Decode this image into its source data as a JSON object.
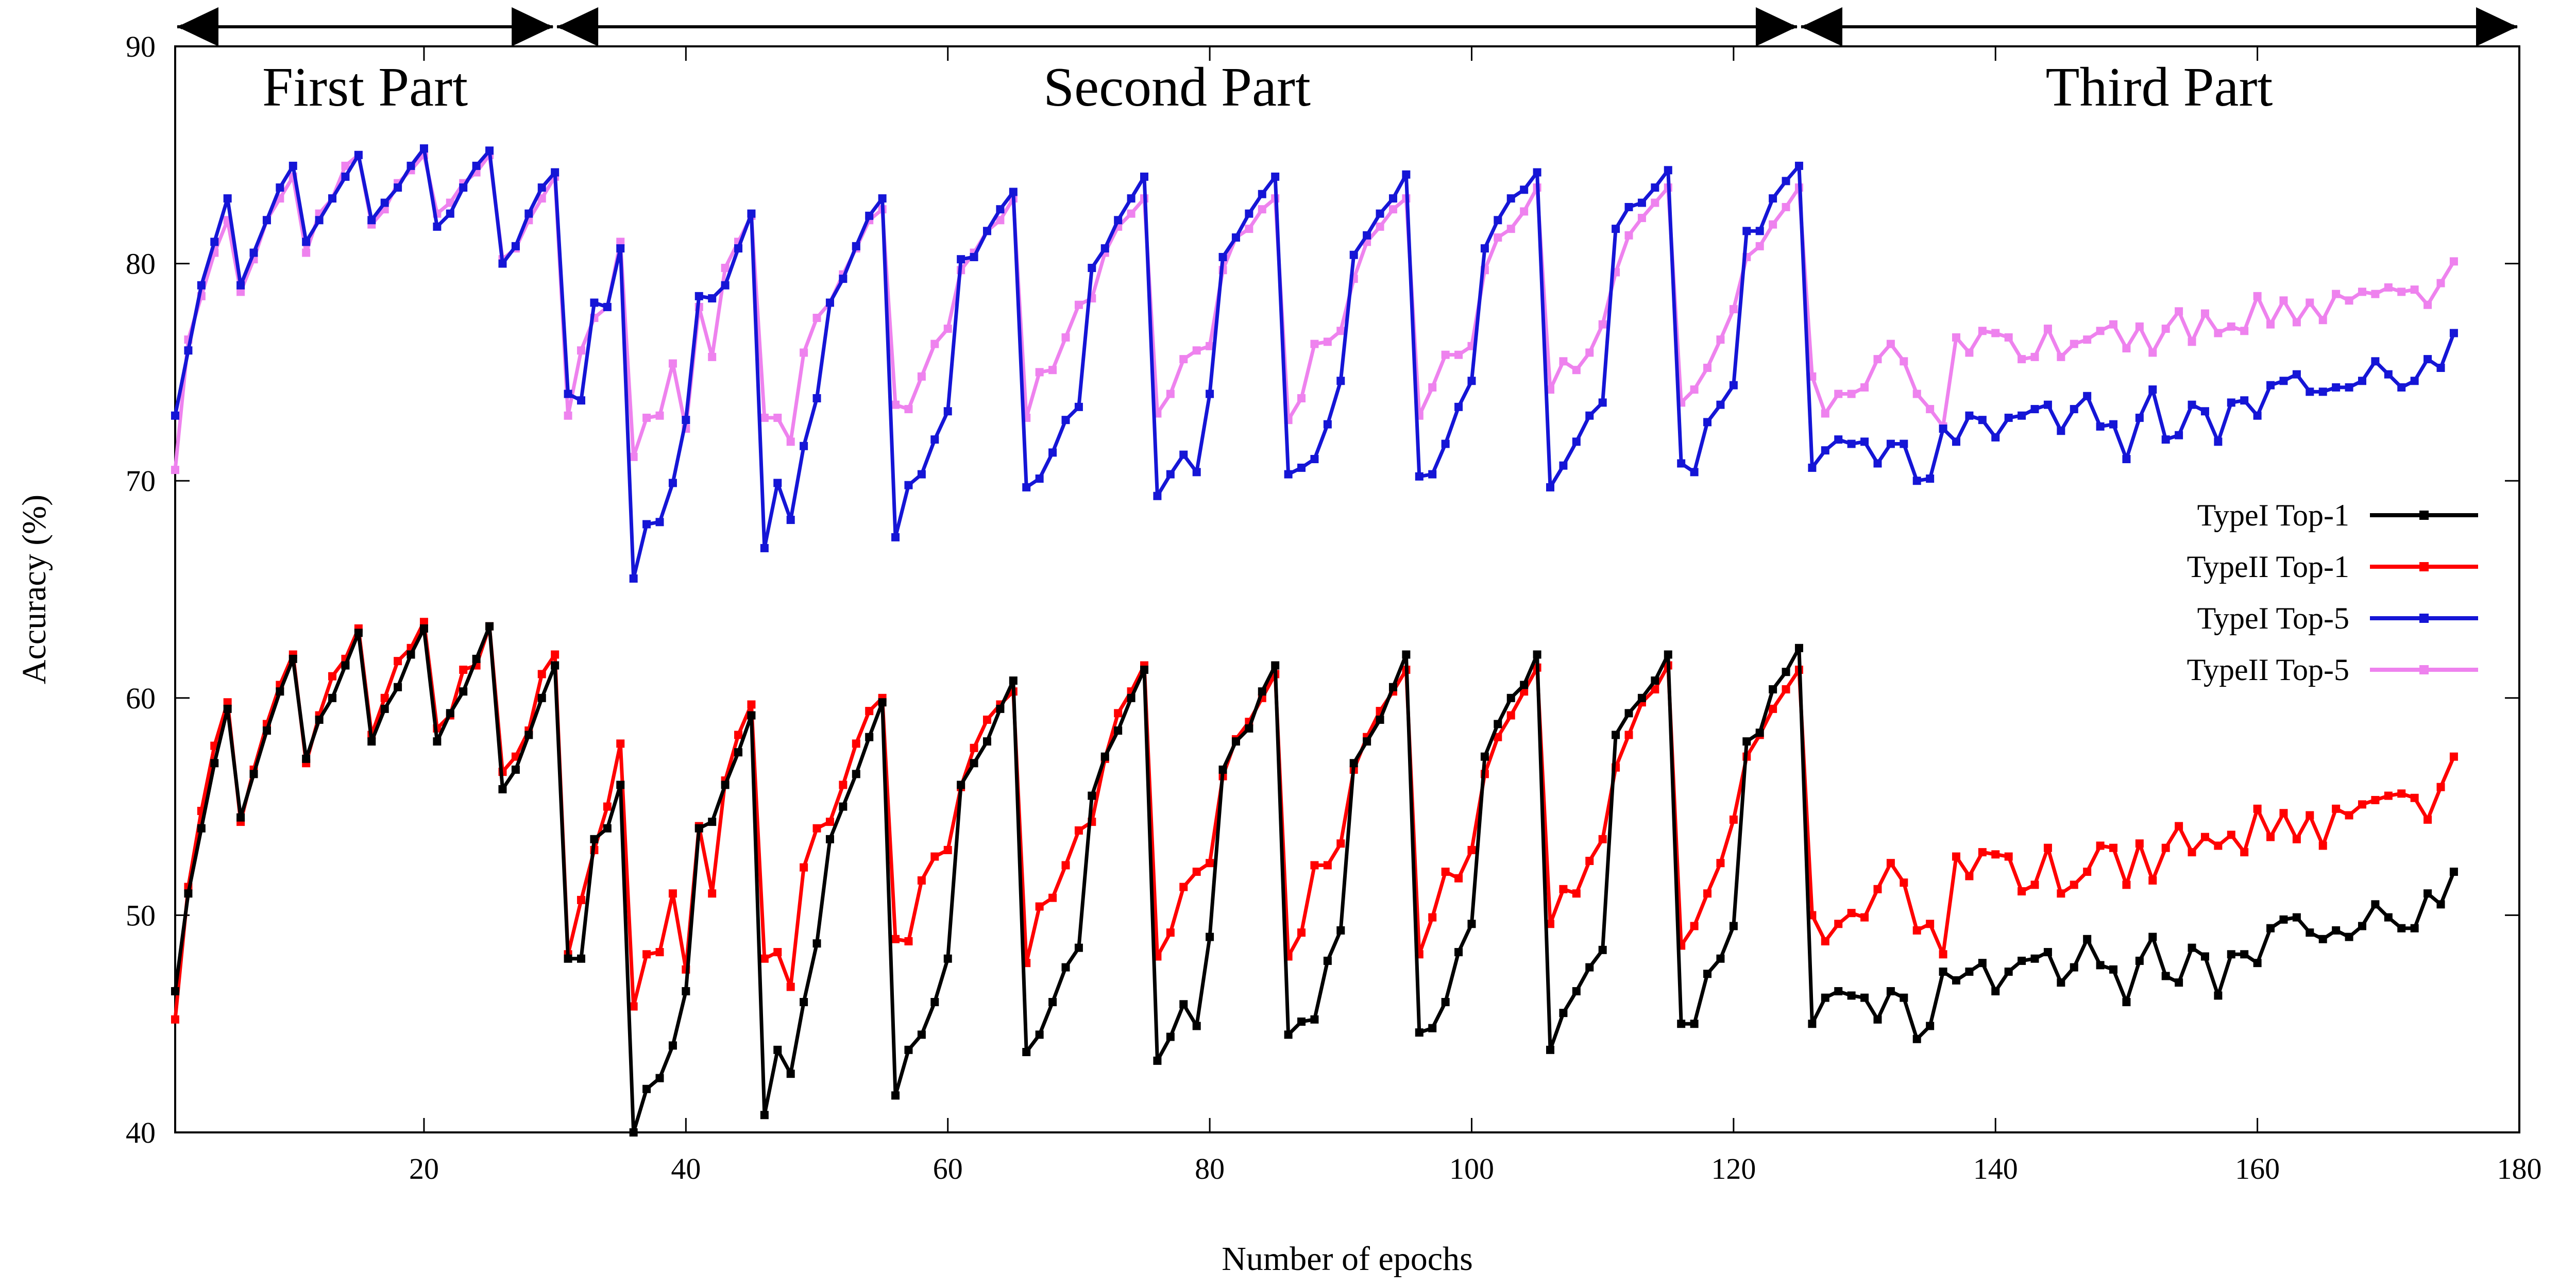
{
  "chart_data": {
    "type": "line",
    "title": "",
    "xlabel": "Number of epochs",
    "ylabel": "Accuracy (%)",
    "xlim": [
      1,
      180
    ],
    "ylim": [
      40,
      90
    ],
    "xticks": [
      20,
      40,
      60,
      80,
      100,
      120,
      140,
      160,
      180
    ],
    "yticks": [
      40,
      50,
      60,
      70,
      80,
      90
    ],
    "grid": false,
    "legend": "right",
    "parts": [
      {
        "label": "First Part",
        "start": 1,
        "end": 30
      },
      {
        "label": "Second Part",
        "start": 30,
        "end": 125
      },
      {
        "label": "Third Part",
        "start": 125,
        "end": 180
      }
    ],
    "x": [
      1,
      2,
      3,
      4,
      5,
      6,
      7,
      8,
      9,
      10,
      11,
      12,
      13,
      14,
      15,
      16,
      17,
      18,
      19,
      20,
      21,
      22,
      23,
      24,
      25,
      26,
      27,
      28,
      29,
      30,
      31,
      32,
      33,
      34,
      35,
      36,
      37,
      38,
      39,
      40,
      41,
      42,
      43,
      44,
      45,
      46,
      47,
      48,
      49,
      50,
      51,
      52,
      53,
      54,
      55,
      56,
      57,
      58,
      59,
      60,
      61,
      62,
      63,
      64,
      65,
      66,
      67,
      68,
      69,
      70,
      71,
      72,
      73,
      74,
      75,
      76,
      77,
      78,
      79,
      80,
      81,
      82,
      83,
      84,
      85,
      86,
      87,
      88,
      89,
      90,
      91,
      92,
      93,
      94,
      95,
      96,
      97,
      98,
      99,
      100,
      101,
      102,
      103,
      104,
      105,
      106,
      107,
      108,
      109,
      110,
      111,
      112,
      113,
      114,
      115,
      116,
      117,
      118,
      119,
      120,
      121,
      122,
      123,
      124,
      125,
      126,
      127,
      128,
      129,
      130,
      131,
      132,
      133,
      134,
      135,
      136,
      137,
      138,
      139,
      140,
      141,
      142,
      143,
      144,
      145,
      146,
      147,
      148,
      149,
      150,
      151,
      152,
      153,
      154,
      155,
      156,
      157,
      158,
      159,
      160,
      161,
      162,
      163,
      164,
      165,
      166,
      167,
      168,
      169,
      170,
      171,
      172,
      173,
      174,
      175
    ],
    "series": [
      {
        "name": "TypeI Top-1",
        "color": "#000000",
        "values": [
          46.5,
          51,
          54,
          57,
          59.5,
          54.5,
          56.5,
          58.5,
          60.3,
          61.8,
          57.2,
          59,
          60,
          61.5,
          63,
          58,
          59.5,
          60.5,
          62,
          63.2,
          58,
          59.3,
          60.3,
          61.8,
          63.3,
          55.8,
          56.7,
          58.3,
          60,
          61.5,
          48,
          48,
          53.5,
          54,
          56,
          40,
          42,
          42.5,
          44,
          46.5,
          54,
          54.3,
          56,
          57.5,
          59.2,
          40.8,
          43.8,
          42.7,
          46,
          48.7,
          53.5,
          55,
          56.5,
          58.2,
          59.8,
          41.7,
          43.8,
          44.5,
          46,
          48,
          56,
          57,
          58,
          59.5,
          60.8,
          43.7,
          44.5,
          46,
          47.6,
          48.5,
          55.5,
          57.3,
          58.5,
          60,
          61.3,
          43.3,
          44.4,
          45.9,
          44.9,
          49,
          56.7,
          58,
          58.6,
          60.3,
          61.5,
          44.5,
          45.1,
          45.2,
          47.9,
          49.3,
          57,
          58,
          59,
          60.5,
          62,
          44.6,
          44.8,
          46,
          48.3,
          49.6,
          57.3,
          58.8,
          60,
          60.6,
          62,
          43.8,
          45.5,
          46.5,
          47.6,
          48.4,
          58.3,
          59.3,
          60,
          60.8,
          62,
          45,
          45,
          47.3,
          48,
          49.5,
          58,
          58.4,
          60.4,
          61.2,
          62.3,
          45,
          46.2,
          46.5,
          46.3,
          46.2,
          45.2,
          46.5,
          46.2,
          44.3,
          44.9,
          47.4,
          47,
          47.4,
          47.8,
          46.5,
          47.4,
          47.9,
          48,
          48.3,
          46.9,
          47.6,
          48.9,
          47.7,
          47.5,
          46,
          47.9,
          49,
          47.2,
          46.9,
          48.5,
          48.1,
          46.3,
          48.2,
          48.2,
          47.8,
          49.4,
          49.8,
          49.9,
          49.2,
          48.9,
          49.3,
          49,
          49.5,
          50.5,
          49.9,
          49.4,
          49.4,
          51,
          50.5,
          52
        ]
      },
      {
        "name": "TypeII Top-1",
        "color": "#ff0000",
        "values": [
          45.2,
          51.3,
          54.8,
          57.8,
          59.8,
          54.3,
          56.7,
          58.8,
          60.6,
          62,
          57,
          59.2,
          61,
          61.8,
          63.2,
          58.3,
          60,
          61.7,
          62.3,
          63.5,
          58.6,
          59.2,
          61.3,
          61.5,
          63.3,
          56.6,
          57.3,
          58.5,
          61.1,
          62,
          48.2,
          50.7,
          53,
          55,
          57.9,
          45.8,
          48.2,
          48.3,
          51,
          47.5,
          54.1,
          51,
          56.2,
          58.3,
          59.7,
          48,
          48.3,
          46.7,
          52.2,
          54,
          54.3,
          56,
          57.9,
          59.4,
          60,
          48.9,
          48.8,
          51.6,
          52.7,
          53,
          55.9,
          57.7,
          59,
          59.7,
          60.3,
          47.8,
          50.4,
          50.8,
          52.3,
          53.9,
          54.3,
          57.2,
          59.3,
          60.3,
          61.5,
          48.1,
          49.2,
          51.3,
          52,
          52.4,
          56.4,
          58.1,
          58.9,
          60,
          61.1,
          48.1,
          49.2,
          52.3,
          52.3,
          53.3,
          56.7,
          58.2,
          59.4,
          60.3,
          61.3,
          48.2,
          49.9,
          52,
          51.7,
          53,
          56.5,
          58.2,
          59.2,
          60.3,
          61.4,
          49.6,
          51.2,
          51,
          52.5,
          53.5,
          56.8,
          58.3,
          59.8,
          60.4,
          61.5,
          48.6,
          49.5,
          51,
          52.4,
          54.4,
          57.3,
          58.3,
          59.5,
          60.4,
          61.3,
          50,
          48.8,
          49.6,
          50.1,
          49.9,
          51.2,
          52.4,
          51.5,
          49.3,
          49.6,
          48.2,
          52.7,
          51.8,
          52.9,
          52.8,
          52.7,
          51.1,
          51.4,
          53.1,
          51,
          51.4,
          52,
          53.2,
          53.1,
          51.4,
          53.3,
          51.6,
          53.1,
          54.1,
          52.9,
          53.6,
          53.2,
          53.7,
          52.9,
          54.9,
          53.6,
          54.7,
          53.5,
          54.6,
          53.2,
          54.9,
          54.6,
          55.1,
          55.3,
          55.5,
          55.6,
          55.4,
          54.4,
          55.9,
          57.3
        ]
      },
      {
        "name": "TypeI Top-5",
        "color": "#1515d6",
        "values": [
          73,
          76,
          79,
          81,
          83,
          79,
          80.5,
          82,
          83.5,
          84.5,
          81,
          82,
          83,
          84,
          85,
          82,
          82.8,
          83.5,
          84.5,
          85.3,
          81.7,
          82.3,
          83.5,
          84.5,
          85.2,
          80,
          80.8,
          82.3,
          83.5,
          84.2,
          74,
          73.7,
          78.2,
          78,
          80.7,
          65.5,
          68,
          68.1,
          69.9,
          72.8,
          78.5,
          78.4,
          79,
          80.7,
          82.3,
          66.9,
          69.9,
          68.2,
          71.6,
          73.8,
          78.2,
          79.3,
          80.8,
          82.2,
          83,
          67.4,
          69.8,
          70.3,
          71.9,
          73.2,
          80.2,
          80.3,
          81.5,
          82.5,
          83.3,
          69.7,
          70.1,
          71.3,
          72.8,
          73.4,
          79.8,
          80.7,
          82,
          83,
          84,
          69.3,
          70.3,
          71.2,
          70.4,
          74,
          80.3,
          81.2,
          82.3,
          83.2,
          84,
          70.3,
          70.6,
          71,
          72.6,
          74.6,
          80.4,
          81.3,
          82.3,
          83,
          84.1,
          70.2,
          70.3,
          71.7,
          73.4,
          74.6,
          80.7,
          82,
          83,
          83.4,
          84.2,
          69.7,
          70.7,
          71.8,
          73,
          73.6,
          81.6,
          82.6,
          82.8,
          83.5,
          84.3,
          70.8,
          70.4,
          72.7,
          73.5,
          74.4,
          81.5,
          81.5,
          83,
          83.8,
          84.5,
          70.6,
          71.4,
          71.9,
          71.7,
          71.8,
          70.8,
          71.7,
          71.7,
          70,
          70.1,
          72.4,
          71.8,
          73,
          72.8,
          72,
          72.9,
          73,
          73.3,
          73.5,
          72.3,
          73.3,
          73.9,
          72.5,
          72.6,
          71,
          72.9,
          74.2,
          71.9,
          72.1,
          73.5,
          73.2,
          71.8,
          73.6,
          73.7,
          73,
          74.4,
          74.6,
          74.9,
          74.1,
          74.1,
          74.3,
          74.3,
          74.6,
          75.5,
          74.9,
          74.3,
          74.6,
          75.6,
          75.2,
          76.8
        ]
      },
      {
        "name": "TypeII Top-5",
        "color": "#ee82ee",
        "values": [
          70.5,
          76.5,
          78.5,
          80.5,
          82,
          78.7,
          80.2,
          82,
          83,
          84,
          80.5,
          82.3,
          83,
          84.5,
          85,
          81.8,
          82.5,
          83.7,
          84.3,
          85,
          82.3,
          82.8,
          83.7,
          84.2,
          85,
          80.2,
          80.7,
          82,
          83,
          84,
          73,
          76,
          77.5,
          78,
          81,
          71.1,
          72.9,
          73,
          75.4,
          72.4,
          78,
          75.7,
          79.8,
          81,
          82.2,
          72.9,
          72.9,
          71.8,
          75.9,
          77.5,
          78.2,
          79.5,
          80.7,
          82,
          82.5,
          73.5,
          73.3,
          74.8,
          76.3,
          77,
          79.7,
          80.5,
          81.5,
          82,
          83,
          72.9,
          75,
          75.1,
          76.6,
          78.1,
          78.4,
          80.5,
          81.7,
          82.3,
          83,
          73.1,
          74,
          75.6,
          76,
          76.2,
          79.7,
          81.2,
          81.6,
          82.5,
          83,
          72.8,
          73.8,
          76.3,
          76.4,
          76.9,
          79.3,
          81,
          81.7,
          82.5,
          83,
          73,
          74.3,
          75.8,
          75.8,
          76.2,
          79.7,
          81.2,
          81.6,
          82.4,
          83.5,
          74.2,
          75.5,
          75.1,
          75.9,
          77.2,
          79.6,
          81.3,
          82.1,
          82.8,
          83.5,
          73.6,
          74.2,
          75.2,
          76.5,
          77.9,
          80.3,
          80.8,
          81.8,
          82.6,
          83.5,
          74.8,
          73.1,
          74,
          74,
          74.3,
          75.6,
          76.3,
          75.5,
          74,
          73.3,
          72.5,
          76.6,
          75.9,
          76.9,
          76.8,
          76.6,
          75.6,
          75.7,
          77,
          75.7,
          76.3,
          76.5,
          76.9,
          77.2,
          76.1,
          77.1,
          75.9,
          77,
          77.8,
          76.4,
          77.7,
          76.8,
          77.1,
          76.9,
          78.5,
          77.2,
          78.3,
          77.3,
          78.2,
          77.4,
          78.6,
          78.3,
          78.7,
          78.6,
          78.9,
          78.7,
          78.8,
          78.1,
          79.1,
          80.1
        ]
      }
    ]
  }
}
